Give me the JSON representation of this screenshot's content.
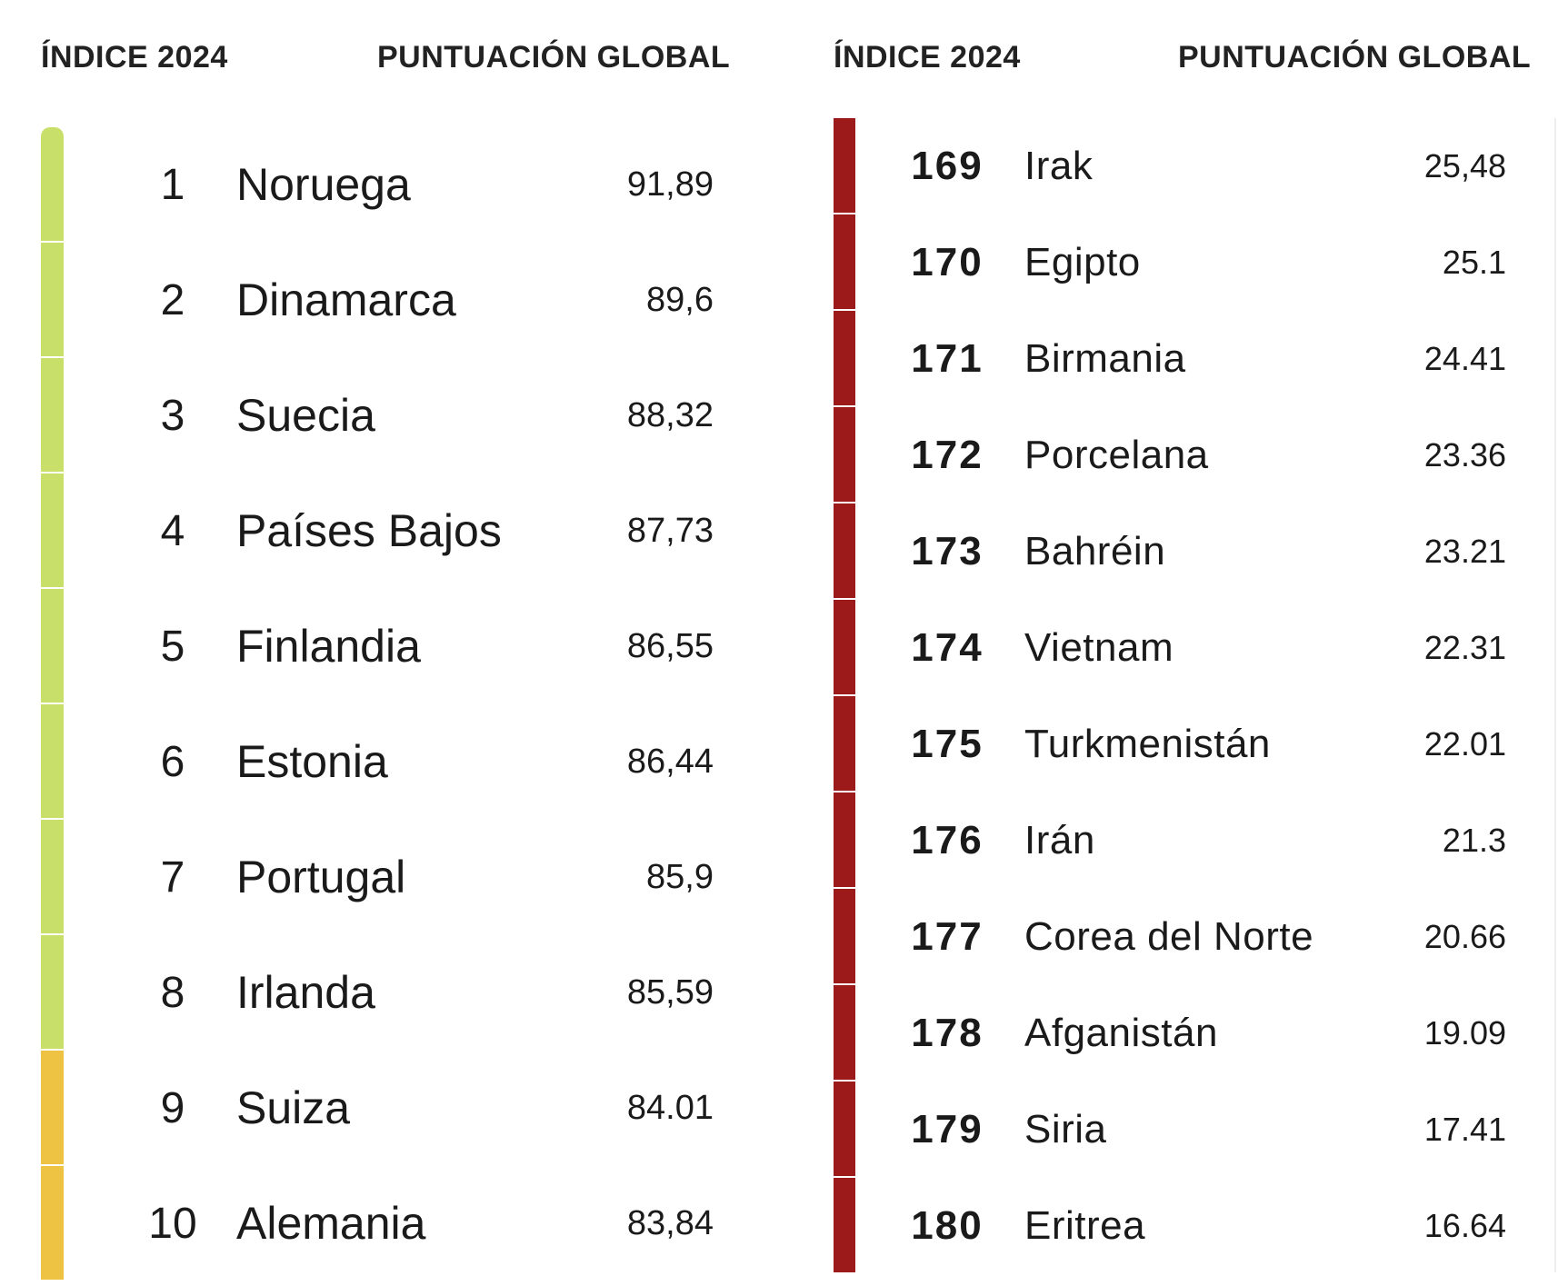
{
  "colors": {
    "top_tier": "#c8e06a",
    "second_tier": "#eec242",
    "bottom_tier": "#9c1a1a"
  },
  "left": {
    "header_rank": "ÍNDICE 2024",
    "header_score": "PUNTUACIÓN GLOBAL",
    "rows": [
      {
        "rank": "1",
        "country": "Noruega",
        "score": "91,89",
        "color": "#c8e06a"
      },
      {
        "rank": "2",
        "country": "Dinamarca",
        "score": "89,6",
        "color": "#c8e06a"
      },
      {
        "rank": "3",
        "country": "Suecia",
        "score": "88,32",
        "color": "#c8e06a"
      },
      {
        "rank": "4",
        "country": "Países Bajos",
        "score": "87,73",
        "color": "#c8e06a"
      },
      {
        "rank": "5",
        "country": "Finlandia",
        "score": "86,55",
        "color": "#c8e06a"
      },
      {
        "rank": "6",
        "country": "Estonia",
        "score": "86,44",
        "color": "#c8e06a"
      },
      {
        "rank": "7",
        "country": "Portugal",
        "score": "85,9",
        "color": "#c8e06a"
      },
      {
        "rank": "8",
        "country": "Irlanda",
        "score": "85,59",
        "color": "#c8e06a"
      },
      {
        "rank": "9",
        "country": "Suiza",
        "score": "84.01",
        "color": "#eec242"
      },
      {
        "rank": "10",
        "country": "Alemania",
        "score": "83,84",
        "color": "#eec242"
      }
    ]
  },
  "right": {
    "header_rank": "ÍNDICE 2024",
    "header_score": "PUNTUACIÓN GLOBAL",
    "rows": [
      {
        "rank": "169",
        "country": "Irak",
        "score": "25,48",
        "color": "#9c1a1a"
      },
      {
        "rank": "170",
        "country": "Egipto",
        "score": "25.1",
        "color": "#9c1a1a"
      },
      {
        "rank": "171",
        "country": "Birmania",
        "score": "24.41",
        "color": "#9c1a1a"
      },
      {
        "rank": "172",
        "country": "Porcelana",
        "score": "23.36",
        "color": "#9c1a1a"
      },
      {
        "rank": "173",
        "country": "Bahréin",
        "score": "23.21",
        "color": "#9c1a1a"
      },
      {
        "rank": "174",
        "country": "Vietnam",
        "score": "22.31",
        "color": "#9c1a1a"
      },
      {
        "rank": "175",
        "country": "Turkmenistán",
        "score": "22.01",
        "color": "#9c1a1a"
      },
      {
        "rank": "176",
        "country": "Irán",
        "score": "21.3",
        "color": "#9c1a1a"
      },
      {
        "rank": "177",
        "country": "Corea del Norte",
        "score": "20.66",
        "color": "#9c1a1a"
      },
      {
        "rank": "178",
        "country": "Afganistán",
        "score": "19.09",
        "color": "#9c1a1a"
      },
      {
        "rank": "179",
        "country": "Siria",
        "score": "17.41",
        "color": "#9c1a1a"
      },
      {
        "rank": "180",
        "country": "Eritrea",
        "score": "16.64",
        "color": "#9c1a1a"
      }
    ]
  },
  "chart_data": {
    "type": "table",
    "title": "",
    "columns": [
      "ÍNDICE 2024",
      "PUNTUACIÓN GLOBAL"
    ],
    "tables": [
      {
        "name": "",
        "rows": [
          {
            "rank": 1,
            "country": "Noruega",
            "score": 91.89
          },
          {
            "rank": 2,
            "country": "Dinamarca",
            "score": 89.6
          },
          {
            "rank": 3,
            "country": "Suecia",
            "score": 88.32
          },
          {
            "rank": 4,
            "country": "Países Bajos",
            "score": 87.73
          },
          {
            "rank": 5,
            "country": "Finlandia",
            "score": 86.55
          },
          {
            "rank": 6,
            "country": "Estonia",
            "score": 86.44
          },
          {
            "rank": 7,
            "country": "Portugal",
            "score": 85.9
          },
          {
            "rank": 8,
            "country": "Irlanda",
            "score": 85.59
          },
          {
            "rank": 9,
            "country": "Suiza",
            "score": 84.01
          },
          {
            "rank": 10,
            "country": "Alemania",
            "score": 83.84
          }
        ]
      },
      {
        "name": "",
        "rows": [
          {
            "rank": 169,
            "country": "Irak",
            "score": 25.48
          },
          {
            "rank": 170,
            "country": "Egipto",
            "score": 25.1
          },
          {
            "rank": 171,
            "country": "Birmania",
            "score": 24.41
          },
          {
            "rank": 172,
            "country": "Porcelana",
            "score": 23.36
          },
          {
            "rank": 173,
            "country": "Bahréin",
            "score": 23.21
          },
          {
            "rank": 174,
            "country": "Vietnam",
            "score": 22.31
          },
          {
            "rank": 175,
            "country": "Turkmenistán",
            "score": 22.01
          },
          {
            "rank": 176,
            "country": "Irán",
            "score": 21.3
          },
          {
            "rank": 177,
            "country": "Corea del Norte",
            "score": 20.66
          },
          {
            "rank": 178,
            "country": "Afganistán",
            "score": 19.09
          },
          {
            "rank": 179,
            "country": "Siria",
            "score": 17.41
          },
          {
            "rank": 180,
            "country": "Eritrea",
            "score": 16.64
          }
        ]
      }
    ]
  }
}
